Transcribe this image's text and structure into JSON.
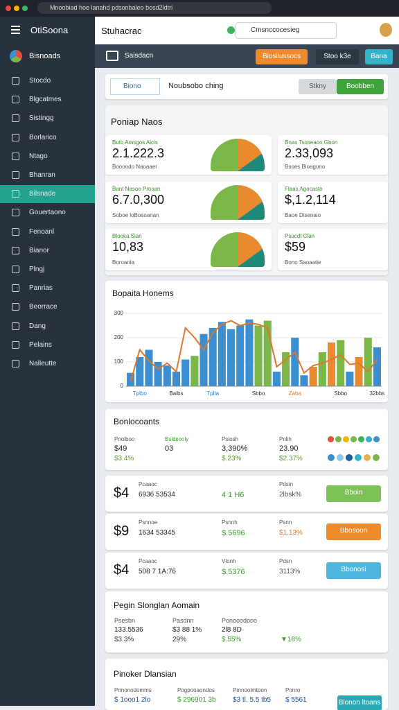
{
  "browser": {
    "url": "Mnoobiad hoe lanahd pdsonbaleo bosd2ldtri"
  },
  "sidebar": {
    "title": "OtiSoona",
    "brand": "Bisnoads",
    "active_index": 6,
    "items": [
      "Stocdo",
      "Blgcatmes",
      "Sistingg",
      "Borlarico",
      "Ntago",
      "Bhanran",
      "Bilsnade",
      "Gouertaono",
      "Fenoanl",
      "Bianor",
      "Plngj",
      "Panrias",
      "Beorrace",
      "Dang",
      "Pelains",
      "Nalleutte"
    ]
  },
  "header": {
    "title": "Stuhacrac",
    "search": "Cmsnccocesieg"
  },
  "toolbar": {
    "title": "Saisdacn",
    "button": "Biosiiussocs",
    "chip": "Stoo k3e",
    "button2": "Bana"
  },
  "filter": {
    "dropdown": "Biono",
    "label": "Noubsobo ching",
    "button": "Stkny",
    "primary": "Boobben"
  },
  "cards": {
    "title": "Poniap Naos",
    "items": [
      {
        "label": "Buto Amsgos Aicis",
        "value": "2.1.222.3",
        "sub": "Boooodo Naoaaer"
      },
      {
        "label": "Bnas Tsoseaoo Gbon",
        "value": "2.33,093",
        "sub": "Bsoes Bloagono"
      },
      {
        "label": "Bant Nasoo Prosan",
        "value": "6.7.0,300",
        "sub": "Soboe loBosoanan"
      },
      {
        "label": "Flaas Agocaste",
        "value": "$,1.2,114",
        "sub": "Baoe Disenaio"
      },
      {
        "label": "Blooka Sian",
        "value": "10,83",
        "sub": "Boroanla"
      },
      {
        "label": "Psucdt Clan",
        "value": "$59",
        "sub": "Bono Saoaatie"
      }
    ]
  },
  "chart_data": {
    "type": "bar",
    "title": "Bopaita Honems",
    "categories": [
      null,
      "Tplbo",
      null,
      null,
      null,
      "Balbs",
      null,
      null,
      null,
      "Tplta",
      null,
      null,
      null,
      null,
      "Sbbo",
      null,
      null,
      null,
      "Zaba",
      null,
      null,
      null,
      null,
      "Sbbo",
      null,
      null,
      null,
      "32bbs"
    ],
    "values": [
      55,
      120,
      150,
      100,
      85,
      60,
      110,
      125,
      215,
      240,
      265,
      235,
      250,
      275,
      250,
      270,
      60,
      140,
      200,
      45,
      80,
      140,
      180,
      190,
      60,
      120,
      200,
      160
    ],
    "colors": [
      "#3b8fd0",
      "#3b8fd0",
      "#3b8fd0",
      "#3b8fd0",
      "#3b8fd0",
      "#3b8fd0",
      "#3b8fd0",
      "#7ab648",
      "#3b8fd0",
      "#3b8fd0",
      "#3b8fd0",
      "#3b8fd0",
      "#3b8fd0",
      "#3b8fd0",
      "#7ab648",
      "#7ab648",
      "#3b8fd0",
      "#7ab648",
      "#3b8fd0",
      "#3b8fd0",
      "#e98a2e",
      "#7ab648",
      "#e98a2e",
      "#7ab648",
      "#3b8fd0",
      "#e98a2e",
      "#7ab648",
      "#3b8fd0"
    ],
    "line": {
      "color": "#e0762b",
      "values": [
        20,
        150,
        105,
        70,
        95,
        60,
        240,
        200,
        150,
        220,
        255,
        270,
        250,
        260,
        255,
        240,
        80,
        110,
        140,
        55,
        85,
        95,
        110,
        130,
        90,
        95,
        60,
        110
      ]
    },
    "ylim": [
      0,
      300
    ],
    "yticks": [
      0,
      100,
      200,
      300
    ],
    "grid": true,
    "xlabel_colors": [
      "#2d7fc1",
      "#333333",
      "#2d7fc1",
      "#333333",
      "#e0762b",
      "#333333",
      "#333333"
    ]
  },
  "summary": {
    "title": "Bonlocoants",
    "columns": [
      {
        "head": "Pnolboo",
        "value": "$49",
        "sub": "$3.4%"
      },
      {
        "head": "Bsldsooly",
        "value": "03",
        "sub": ""
      },
      {
        "head": "Psiosh",
        "value": "3,390%",
        "sub": "$.23%"
      },
      {
        "head": "Pnlih",
        "value": "23.90",
        "sub": "$2.37%"
      }
    ]
  },
  "rows": [
    {
      "big": "$4",
      "label": "Pcaaoc",
      "value": "6936 53534",
      "c3": "4 1 H6",
      "c4label": "Pdsin",
      "c4": "2lbsk%",
      "button": "Bboin"
    },
    {
      "big": "$9",
      "label": "Psnnoe",
      "value": "1634 53345",
      "c3label": "Psnnh",
      "c3": "$.5696",
      "c4label": "Psnn",
      "c4": "$1.13%",
      "button": "Bbosoon"
    },
    {
      "big": "$4",
      "label": "Pcaaoc",
      "value": "508 7 1A:76",
      "c3label": "Vlonh",
      "c3": "$.5376",
      "c4label": "Pdsn",
      "c4": "3113%",
      "button": "Bbonosi"
    }
  ],
  "region": {
    "title": "Pegin Slonglan Aomain",
    "columns": [
      {
        "head": "Psesbn",
        "value": "133.5536",
        "sub": "$3.3%"
      },
      {
        "head": "Pasdnn",
        "value": "$3 88 1%",
        "sub": "29%"
      },
      {
        "head": "Ponooodooo",
        "value": "2l8 8D",
        "sub": "$.55%"
      },
      {
        "sub": "▼18%"
      }
    ]
  },
  "footer": {
    "title": "Pinoker Dlansian",
    "heads": [
      "Pnnonodomms",
      "Pogpooaondos",
      "Pmnoolmtoon",
      "Ponro"
    ],
    "values": [
      "$ 1ooo1 2lo",
      "$ 296901 3b",
      "$3 tl. 5.5 tb5",
      "$ 5561"
    ],
    "button": "Blonon ltoans"
  }
}
